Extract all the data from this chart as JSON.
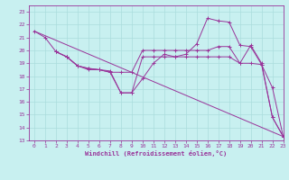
{
  "bg_color": "#c8f0f0",
  "line_color": "#993399",
  "grid_color": "#aadddd",
  "xlabel": "Windchill (Refroidissement éolien,°C)",
  "xlim": [
    -0.5,
    23
  ],
  "ylim": [
    13,
    23.5
  ],
  "xticks": [
    0,
    1,
    2,
    3,
    4,
    5,
    6,
    7,
    8,
    9,
    10,
    11,
    12,
    13,
    14,
    15,
    16,
    17,
    18,
    19,
    20,
    21,
    22,
    23
  ],
  "yticks": [
    13,
    14,
    15,
    16,
    17,
    18,
    19,
    20,
    21,
    22,
    23
  ],
  "lines": [
    {
      "x": [
        0,
        23
      ],
      "y": [
        21.5,
        13.3
      ]
    },
    {
      "x": [
        0,
        1,
        2,
        3,
        4,
        5,
        6,
        7,
        8,
        9,
        10,
        11,
        12,
        13,
        14,
        15,
        16,
        17,
        18,
        19,
        20,
        21,
        22,
        23
      ],
      "y": [
        21.5,
        21.0,
        19.9,
        19.5,
        18.8,
        18.6,
        18.5,
        18.4,
        16.7,
        16.7,
        17.8,
        19.0,
        19.7,
        19.5,
        19.7,
        20.5,
        22.5,
        22.3,
        22.2,
        20.4,
        20.3,
        18.9,
        17.1,
        13.3
      ]
    },
    {
      "x": [
        2,
        3,
        4,
        5,
        6,
        7,
        8,
        9,
        10,
        11,
        12,
        13,
        14,
        15,
        16,
        17,
        18,
        19,
        20,
        21,
        22,
        23
      ],
      "y": [
        19.9,
        19.5,
        18.8,
        18.6,
        18.5,
        18.3,
        18.3,
        18.3,
        20.0,
        20.0,
        20.0,
        20.0,
        20.0,
        20.0,
        20.0,
        20.3,
        20.3,
        19.0,
        20.4,
        19.0,
        14.8,
        13.3
      ]
    },
    {
      "x": [
        2,
        3,
        4,
        5,
        6,
        7,
        8,
        9,
        10,
        11,
        12,
        13,
        14,
        15,
        16,
        17,
        18,
        19,
        20,
        21,
        22,
        23
      ],
      "y": [
        19.9,
        19.5,
        18.8,
        18.5,
        18.5,
        18.3,
        16.7,
        16.7,
        19.5,
        19.5,
        19.5,
        19.5,
        19.5,
        19.5,
        19.5,
        19.5,
        19.5,
        19.0,
        19.0,
        18.9,
        14.8,
        13.3
      ]
    }
  ]
}
